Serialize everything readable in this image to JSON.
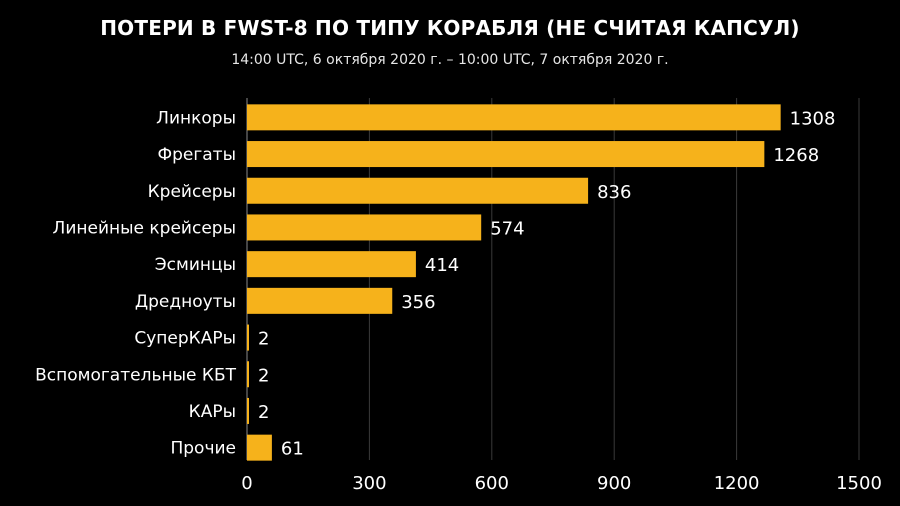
{
  "chart_data": {
    "type": "bar",
    "orientation": "horizontal",
    "title": "ПОТЕРИ В FWST-8 ПО ТИПУ КОРАБЛЯ (НЕ СЧИТАЯ КАПСУЛ)",
    "subtitle": "14:00 UTC, 6 октября 2020 г. – 10:00 UTC, 7 октября 2020 г.",
    "xlabel": "",
    "ylabel": "",
    "categories": [
      "Линкоры",
      "Фрегаты",
      "Крейсеры",
      "Линейные крейсеры",
      "Эсминцы",
      "Дредноуты",
      "СуперКАРы",
      "Вспомогательные КБТ",
      "КАРы",
      "Прочие"
    ],
    "values": [
      1308,
      1268,
      836,
      574,
      414,
      356,
      2,
      2,
      2,
      61
    ],
    "xlim": [
      0,
      1500
    ],
    "xticks": [
      "0",
      "300",
      "600",
      "900",
      "1200",
      "1500"
    ],
    "grid": "vertical",
    "bar_color": "#f6b21b",
    "background_color": "#000000",
    "text_color": "#ffffff",
    "grid_color": "#3a3a3a"
  }
}
